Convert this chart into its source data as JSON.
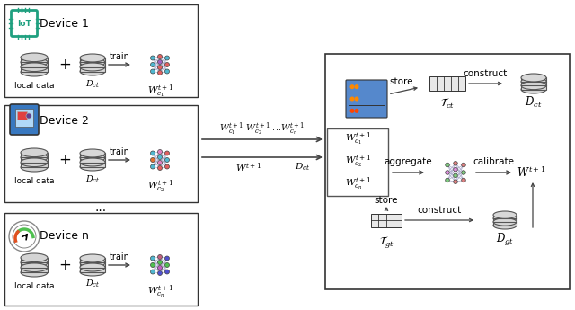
{
  "bg_color": "#ffffff",
  "device_box_color": "#333333",
  "server_box_color": "#333333",
  "arrow_color": "#444444",
  "text_color": "#000000",
  "db_color_local": "#d4d4d4",
  "db_color_dct": "#d8d8d8",
  "server_blue": "#4472c4",
  "device1_label": "Device 1",
  "device2_label": "Device 2",
  "devicen_label": "Device n",
  "local_data_label": "local data",
  "train_label": "train",
  "store_ct_label": "store",
  "store_gt_label": "store",
  "construct_ct_label": "construct",
  "construct_gt_label": "construct",
  "aggregate_label": "aggregate",
  "calibrate_label": "calibrate",
  "figwidth": 6.4,
  "figheight": 3.45
}
